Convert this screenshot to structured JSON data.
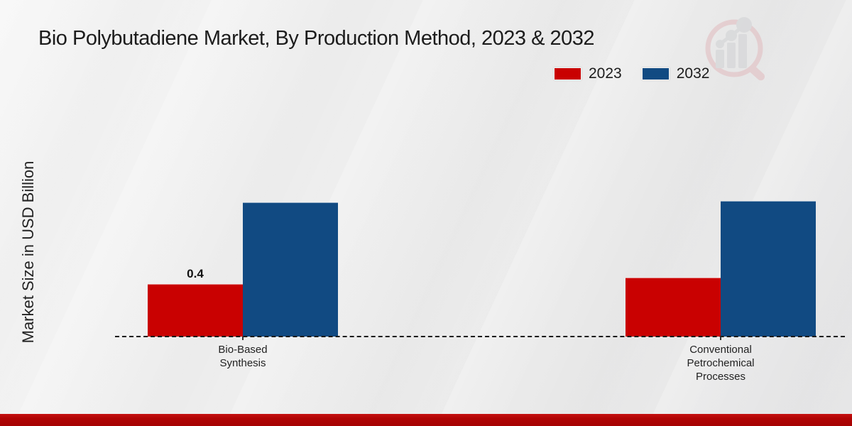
{
  "page": {
    "title": "Bio Polybutadiene Market, By Production Method, 2023 & 2032",
    "y_axis_label": "Market Size in USD Billion"
  },
  "legend": {
    "items": [
      {
        "label": "2023",
        "color": "#c90101"
      },
      {
        "label": "2032",
        "color": "#114a82"
      }
    ]
  },
  "chart_data": {
    "type": "bar",
    "title": "Bio Polybutadiene Market, By Production Method, 2023 & 2032",
    "ylabel": "Market Size in USD Billion",
    "xlabel": "",
    "categories": [
      "Bio-Based Synthesis",
      "Conventional Petrochemical Processes"
    ],
    "category_label_lines": [
      [
        "Bio-Based",
        "Synthesis"
      ],
      [
        "Conventional",
        "Petrochemical",
        "Processes"
      ]
    ],
    "series": [
      {
        "name": "2023",
        "color": "#c90101",
        "values": [
          0.4,
          0.45
        ],
        "data_labels": [
          "0.4",
          ""
        ]
      },
      {
        "name": "2032",
        "color": "#114a82",
        "values": [
          1.02,
          1.03
        ],
        "data_labels": [
          "",
          ""
        ]
      }
    ],
    "ylim": [
      0,
      1.1
    ],
    "grid": false,
    "legend_position": "top-right",
    "baseline_style": "dashed-black",
    "axis_ticks_visible": false
  },
  "watermark": {
    "name": "market-research-logo",
    "lens_color": "#dfa9ae",
    "bars_color": "#c7c9cc"
  },
  "colors": {
    "background": "#ededee",
    "footer_band": "#ad0303",
    "text": "#1c1c1c",
    "axis_line": "#1a1a1a"
  }
}
